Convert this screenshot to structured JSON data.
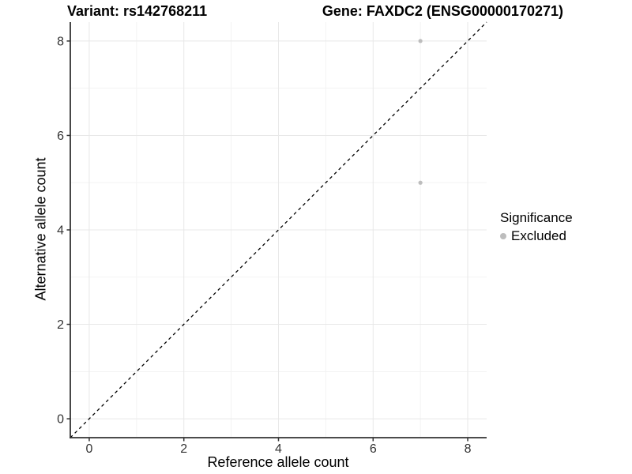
{
  "header": {
    "title_left": "Variant: rs142768211",
    "title_right": "Gene: FAXDC2 (ENSG00000170271)"
  },
  "axes": {
    "x_label": "Reference allele count",
    "y_label": "Alternative allele count"
  },
  "legend": {
    "title": "Significance",
    "items": [
      {
        "label": "Excluded",
        "color": "#bdbdbd"
      }
    ]
  },
  "chart_data": {
    "type": "scatter",
    "title": "Variant: rs142768211 | Gene: FAXDC2 (ENSG00000170271)",
    "xlabel": "Reference allele count",
    "ylabel": "Alternative allele count",
    "xlim": [
      -0.4,
      8.4
    ],
    "ylim": [
      -0.4,
      8.4
    ],
    "x_ticks": [
      0,
      2,
      4,
      6,
      8
    ],
    "y_ticks": [
      0,
      2,
      4,
      6,
      8
    ],
    "x_minor_ticks": [
      1,
      3,
      5,
      7
    ],
    "y_minor_ticks": [
      1,
      3,
      5,
      7
    ],
    "grid": true,
    "legend_position": "right",
    "series": [
      {
        "name": "Excluded",
        "color": "#bdbdbd",
        "marker_radius": 2.6,
        "points": [
          [
            7,
            8
          ],
          [
            7,
            5
          ]
        ]
      }
    ],
    "reference_line": {
      "style": "dashed",
      "slope": 1,
      "intercept": 0,
      "from": [
        -0.4,
        -0.4
      ],
      "to": [
        8.4,
        8.4
      ],
      "color": "#000000"
    }
  },
  "style": {
    "background": "#ffffff",
    "axis_line_color": "#333333",
    "tick_color": "#333333",
    "tick_label_color": "#333333",
    "major_grid_color": "#e8e8e8",
    "minor_grid_color": "#f3f3f3",
    "tick_label_font_px": 16
  }
}
